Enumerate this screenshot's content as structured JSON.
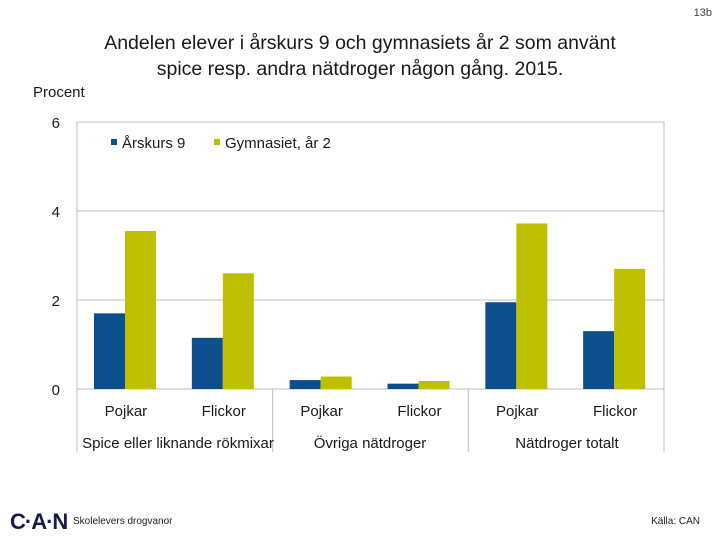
{
  "slide": {
    "number": "13b"
  },
  "chart_data": {
    "type": "bar",
    "title_line1": "Andelen elever i årskurs 9 och gymnasiets år 2 som använt",
    "title_line2": "spice resp. andra nätdroger någon gång. 2015.",
    "ylabel": "Procent",
    "ylim": [
      0,
      6
    ],
    "yticks": [
      "0",
      "2",
      "4",
      "6"
    ],
    "grid": true,
    "legend_position": "top-left",
    "categories": [
      "Pojkar",
      "Flickor",
      "Pojkar",
      "Flickor",
      "Pojkar",
      "Flickor"
    ],
    "groups": [
      "Spice eller liknande rökmixar",
      "Övriga nätdroger",
      "Nätdroger totalt"
    ],
    "series": [
      {
        "name": "Årskurs 9",
        "color": "#0b4f8f",
        "values": [
          1.7,
          1.15,
          0.2,
          0.12,
          1.95,
          1.3
        ]
      },
      {
        "name": "Gymnasiet, år 2",
        "color": "#bdbf00",
        "values": [
          3.55,
          2.6,
          0.28,
          0.18,
          3.72,
          2.7
        ]
      }
    ]
  },
  "footer": {
    "logo": "C·A·N",
    "organization": "Skolelevers drogvanor",
    "source": "Källa: CAN"
  }
}
